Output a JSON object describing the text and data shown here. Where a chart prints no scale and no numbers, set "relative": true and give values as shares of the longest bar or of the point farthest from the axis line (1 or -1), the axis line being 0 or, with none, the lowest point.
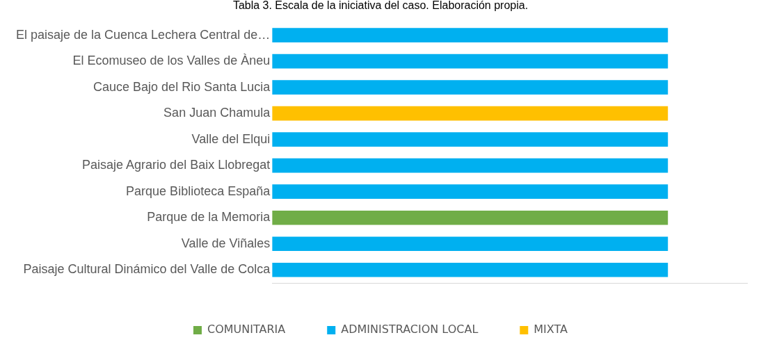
{
  "chart_data": {
    "type": "bar",
    "orientation": "horizontal",
    "stacked": true,
    "relative": true,
    "title": "Tabla 3. Escala de la iniciativa del caso. Elaboración propia.",
    "categories": [
      "El paisaje de la Cuenca Lechera Central de…",
      "El Ecomuseo de los Valles de Àneu",
      "Cauce Bajo del Rio Santa Lucia",
      "San Juan Chamula",
      "Valle del Elqui",
      "Paisaje Agrario del Baix Llobregat",
      "Parque Biblioteca España",
      "Parque de la Memoria",
      "Valle de Viñales",
      "Paisaje Cultural Dinámico del Valle de Colca"
    ],
    "series": [
      {
        "name": "COMUNITARIA",
        "color": "#70ad47",
        "values": [
          null,
          null,
          null,
          null,
          null,
          null,
          null,
          1,
          null,
          null
        ]
      },
      {
        "name": "ADMINISTRACION LOCAL",
        "color": "#00b0f0",
        "values": [
          1,
          1,
          1,
          null,
          1,
          1,
          1,
          null,
          1,
          1
        ]
      },
      {
        "name": "MIXTA",
        "color": "#ffc000",
        "values": [
          null,
          null,
          null,
          1,
          null,
          null,
          null,
          null,
          null,
          null
        ]
      }
    ],
    "legend": "bottom"
  }
}
